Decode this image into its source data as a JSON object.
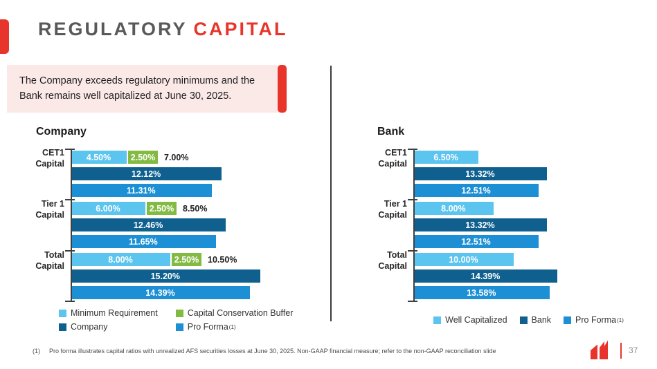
{
  "slide": {
    "title": {
      "primary": "REGULATORY",
      "accent": "CAPITAL"
    },
    "callout": {
      "lines": [
        "The Company exceeds regulatory minimums and the",
        "Bank remains well capitalized at June 30, 2025."
      ]
    },
    "footnote": {
      "marker": "(1)",
      "text": "Pro forma illustrates capital ratios with unrealized AFS securities losses at June 30, 2025. Non-GAAP financial measure; refer to the non-GAAP reconciliation slide"
    },
    "page_number": "37",
    "logo_name": "company-logo-mark"
  },
  "colors": {
    "accent_red": "#E8352B",
    "callout_bg": "#FBE9E8",
    "title_gray": "#58595B",
    "axis_gray": "#3F3F3F",
    "light_blue": "#5BC4EF",
    "green": "#82BA42",
    "dark_blue": "#0F608F",
    "medium_blue": "#1C8FD5"
  },
  "chart_data": [
    {
      "type": "bar",
      "orientation": "horizontal",
      "title": "Company",
      "unit": "%",
      "xlim": [
        0,
        20
      ],
      "grid": false,
      "legend_position": "bottom-left-two-column",
      "categories": [
        "CET1 Capital",
        "Tier 1 Capital",
        "Total Capital"
      ],
      "series_colors": {
        "Minimum Requirement": "#5BC4EF",
        "Capital Conservation Buffer": "#82BA42",
        "Company": "#0F608F",
        "Pro Forma": "#1C8FD5"
      },
      "groups": [
        {
          "category": "CET1\nCapital",
          "rows": [
            {
              "segments": [
                {
                  "series": "Minimum Requirement",
                  "value": 4.5,
                  "label": "4.50%"
                },
                {
                  "series": "Capital Conservation Buffer",
                  "value": 2.5,
                  "label": "2.50%"
                }
              ],
              "total_label": "7.00%"
            },
            {
              "series": "Company",
              "value": 12.12,
              "label": "12.12%"
            },
            {
              "series": "Pro Forma",
              "value": 11.31,
              "label": "11.31%"
            }
          ]
        },
        {
          "category": "Tier 1\nCapital",
          "rows": [
            {
              "segments": [
                {
                  "series": "Minimum Requirement",
                  "value": 6.0,
                  "label": "6.00%"
                },
                {
                  "series": "Capital Conservation Buffer",
                  "value": 2.5,
                  "label": "2.50%"
                }
              ],
              "total_label": "8.50%"
            },
            {
              "series": "Company",
              "value": 12.46,
              "label": "12.46%"
            },
            {
              "series": "Pro Forma",
              "value": 11.65,
              "label": "11.65%"
            }
          ]
        },
        {
          "category": "Total\nCapital",
          "rows": [
            {
              "segments": [
                {
                  "series": "Minimum Requirement",
                  "value": 8.0,
                  "label": "8.00%"
                },
                {
                  "series": "Capital Conservation Buffer",
                  "value": 2.5,
                  "label": "2.50%"
                }
              ],
              "total_label": "10.50%"
            },
            {
              "series": "Company",
              "value": 15.2,
              "label": "15.20%"
            },
            {
              "series": "Pro Forma",
              "value": 14.39,
              "label": "14.39%"
            }
          ]
        }
      ],
      "legend": [
        {
          "label": "Minimum Requirement",
          "color": "#5BC4EF"
        },
        {
          "label": "Capital Conservation Buffer",
          "color": "#82BA42"
        },
        {
          "label": "Company",
          "color": "#0F608F"
        },
        {
          "label": "Pro Forma",
          "sup": "(1)",
          "color": "#1C8FD5"
        }
      ]
    },
    {
      "type": "bar",
      "orientation": "horizontal",
      "title": "Bank",
      "unit": "%",
      "xlim": [
        0,
        23
      ],
      "grid": false,
      "legend_position": "bottom-center-row",
      "categories": [
        "CET1 Capital",
        "Tier 1 Capital",
        "Total Capital"
      ],
      "series_colors": {
        "Well Capitalized": "#5BC4EF",
        "Bank": "#0F608F",
        "Pro Forma": "#1C8FD5"
      },
      "groups": [
        {
          "category": "CET1\nCapital",
          "rows": [
            {
              "series": "Well Capitalized",
              "value": 6.5,
              "label": "6.50%"
            },
            {
              "series": "Bank",
              "value": 13.32,
              "label": "13.32%"
            },
            {
              "series": "Pro Forma",
              "value": 12.51,
              "label": "12.51%"
            }
          ]
        },
        {
          "category": "Tier 1\nCapital",
          "rows": [
            {
              "series": "Well Capitalized",
              "value": 8.0,
              "label": "8.00%"
            },
            {
              "series": "Bank",
              "value": 13.32,
              "label": "13.32%"
            },
            {
              "series": "Pro Forma",
              "value": 12.51,
              "label": "12.51%"
            }
          ]
        },
        {
          "category": "Total\nCapital",
          "rows": [
            {
              "series": "Well Capitalized",
              "value": 10.0,
              "label": "10.00%"
            },
            {
              "series": "Bank",
              "value": 14.39,
              "label": "14.39%"
            },
            {
              "series": "Pro Forma",
              "value": 13.58,
              "label": "13.58%"
            }
          ]
        }
      ],
      "legend": [
        {
          "label": "Well Capitalized",
          "color": "#5BC4EF"
        },
        {
          "label": "Bank",
          "color": "#0F608F"
        },
        {
          "label": "Pro Forma",
          "sup": "(1)",
          "color": "#1C8FD5"
        }
      ]
    }
  ]
}
